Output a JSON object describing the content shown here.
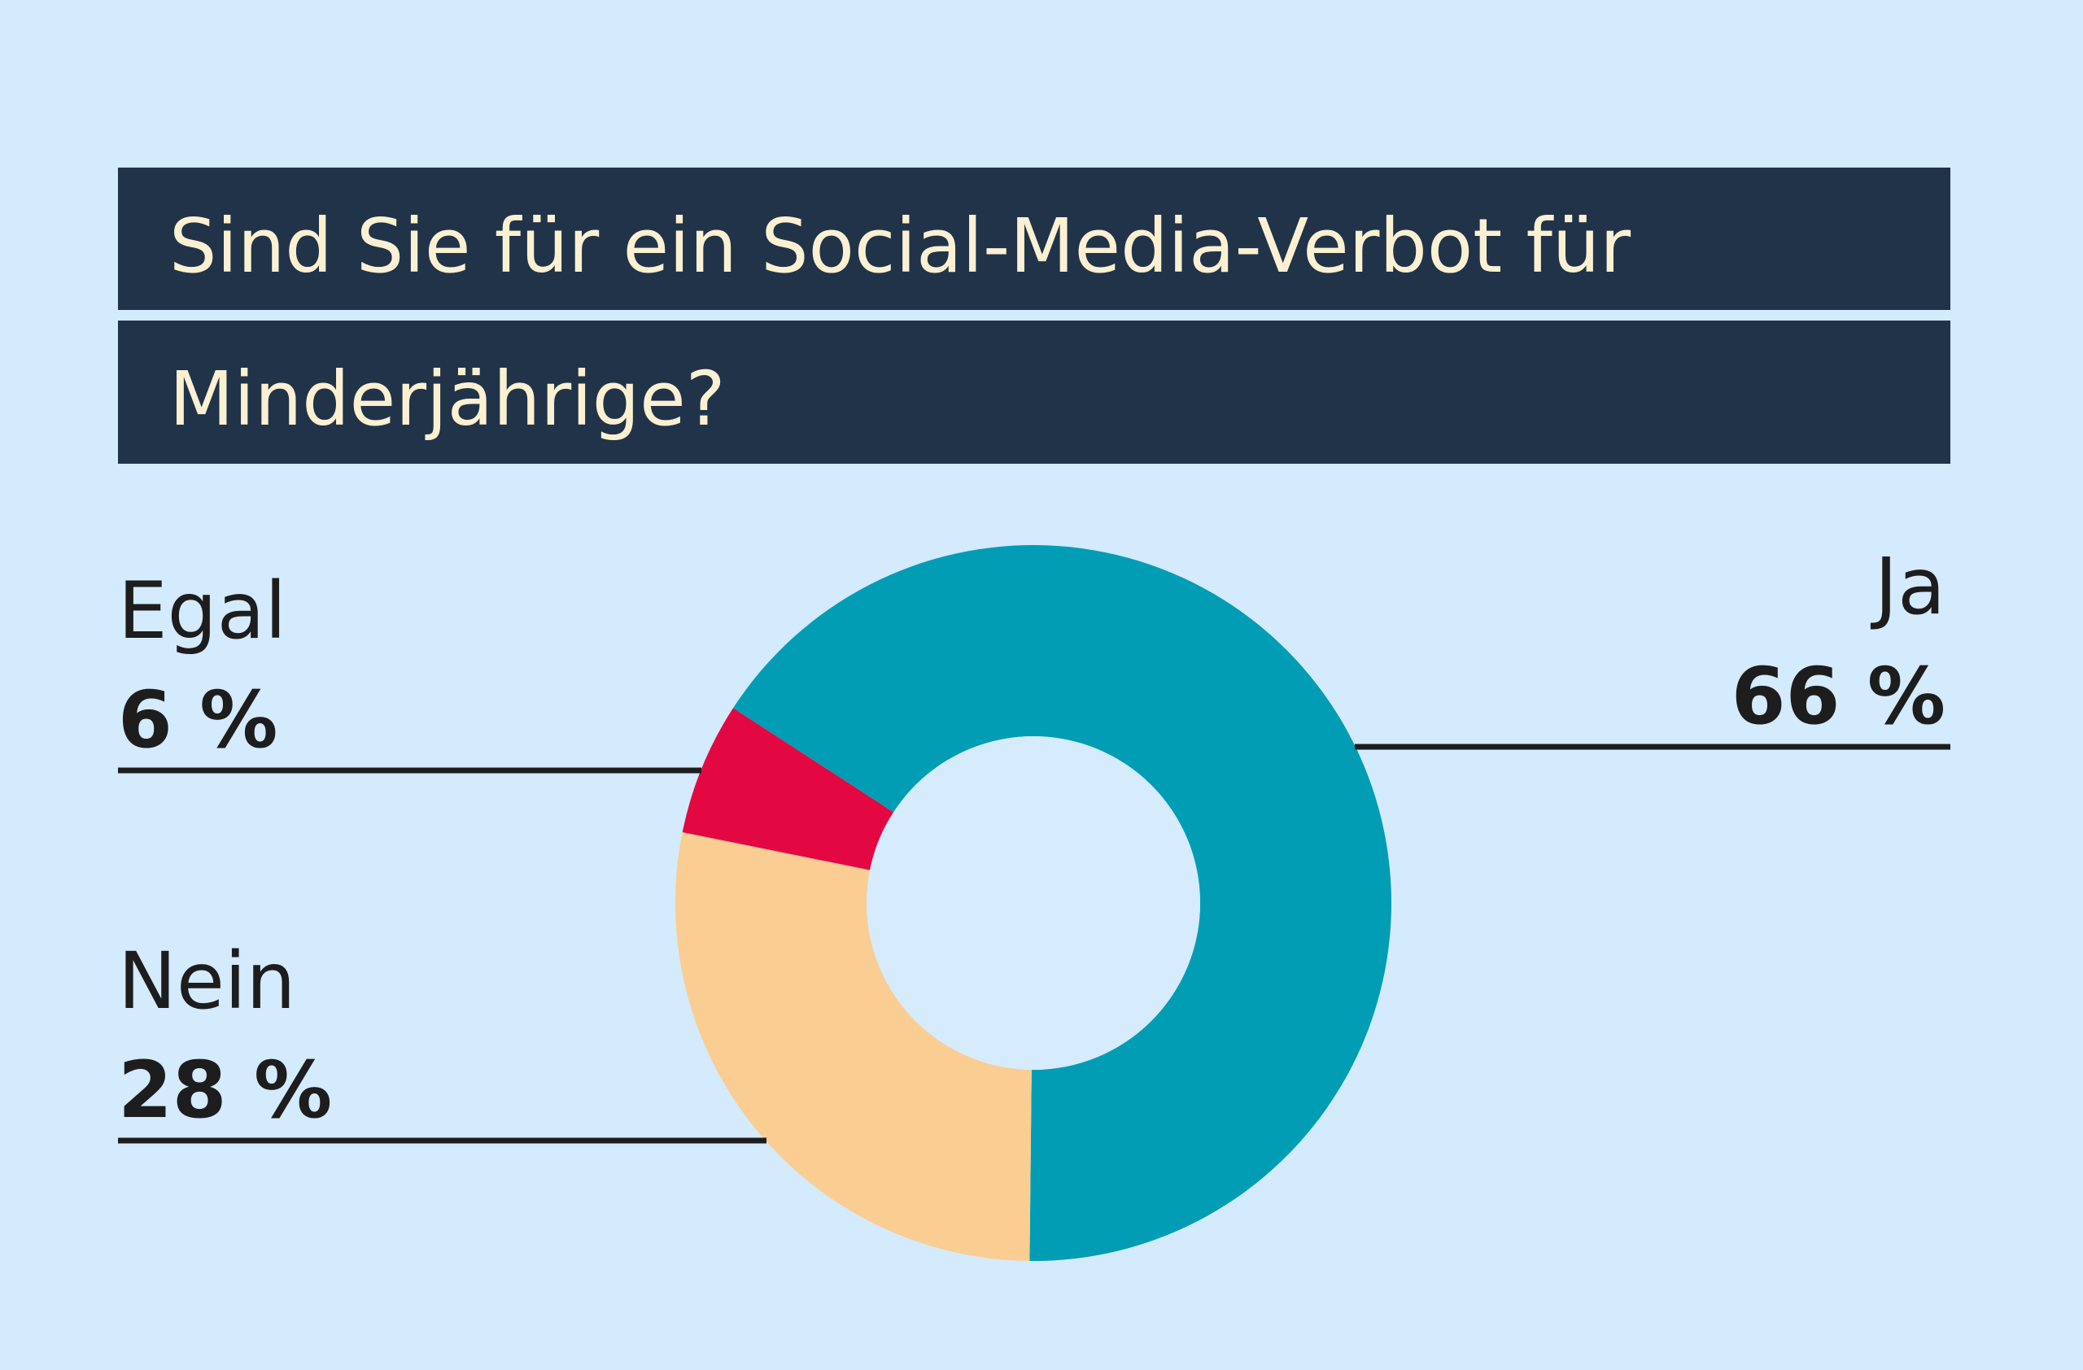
{
  "chart_data": {
    "type": "pie",
    "donut": true,
    "title_lines": [
      "Sind Sie für ein Social-Media-Verbot für",
      "Minderjährige?"
    ],
    "slices": [
      {
        "label": "Ja",
        "value": 66,
        "value_label": "66 %",
        "color": "#009db5"
      },
      {
        "label": "Nein",
        "value": 28,
        "value_label": "28 %",
        "color": "#facd92"
      },
      {
        "label": "Egal",
        "value": 6,
        "value_label": "6 %",
        "color": "#e30842"
      }
    ]
  },
  "colors": {
    "background": "#d4eafd",
    "title_bar": "#203349",
    "title_text": "#fbf1d2",
    "leader_line": "#1d1d1d",
    "donut_hole": "#d6ebfc"
  }
}
